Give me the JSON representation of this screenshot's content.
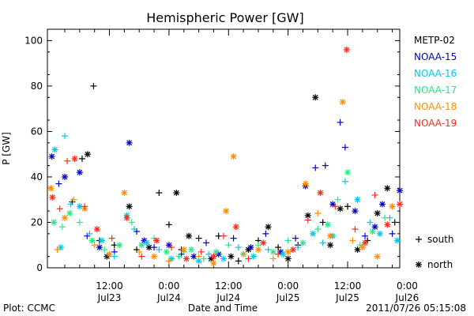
{
  "footer": {
    "left": "Plot: CCMC",
    "center": "Date and Time",
    "right": "2011/07/26 05:15:08"
  },
  "chart_data": {
    "type": "scatter",
    "title": "Hemispheric Power [GW]",
    "xlabel": "Date and Time",
    "ylabel": "P [GW]",
    "xlim": [
      -0.5,
      70.5
    ],
    "ylim": [
      0,
      105
    ],
    "y_ticks": [
      0,
      20,
      40,
      60,
      80,
      100
    ],
    "x_ticks": [
      {
        "x": 12,
        "top": "12:00",
        "bottom": "Jul23"
      },
      {
        "x": 24,
        "top": "0:00",
        "bottom": "Jul24"
      },
      {
        "x": 36,
        "top": "12:00",
        "bottom": "Jul24"
      },
      {
        "x": 48,
        "top": "0:00",
        "bottom": "Jul25"
      },
      {
        "x": 60,
        "top": "12:00",
        "bottom": "Jul25"
      },
      {
        "x": 72,
        "top": "0:00",
        "bottom": "Jul26"
      }
    ],
    "x_unit": "hours since 2011-07-23 00:00",
    "grid": false,
    "legend_position": "right",
    "marker_legend": [
      {
        "symbol": "+",
        "label": "south"
      },
      {
        "symbol": "*",
        "label": "north"
      }
    ],
    "series": [
      {
        "name": "METP-02",
        "color": "#000000",
        "points": [
          {
            "x": 6.5,
            "y": 48,
            "m": "+"
          },
          {
            "x": 7.6,
            "y": 50,
            "m": "*"
          },
          {
            "x": 8.8,
            "y": 80,
            "m": "+"
          },
          {
            "x": 10.0,
            "y": 12,
            "m": "+"
          },
          {
            "x": 11.5,
            "y": 5,
            "m": "*"
          },
          {
            "x": 13.0,
            "y": 10,
            "m": "+"
          },
          {
            "x": 16.0,
            "y": 27,
            "m": "*"
          },
          {
            "x": 17.5,
            "y": 8,
            "m": "+"
          },
          {
            "x": 20.0,
            "y": 9,
            "m": "*"
          },
          {
            "x": 22.0,
            "y": 33,
            "m": "+"
          },
          {
            "x": 24.0,
            "y": 19,
            "m": "+"
          },
          {
            "x": 25.5,
            "y": 33,
            "m": "*"
          },
          {
            "x": 26.5,
            "y": 8,
            "m": "+"
          },
          {
            "x": 28.0,
            "y": 14,
            "m": "*"
          },
          {
            "x": 30.0,
            "y": 13,
            "m": "+"
          },
          {
            "x": 32.5,
            "y": 4,
            "m": "*"
          },
          {
            "x": 34.0,
            "y": 14,
            "m": "+"
          },
          {
            "x": 36.5,
            "y": 5,
            "m": "*"
          },
          {
            "x": 38.0,
            "y": 3,
            "m": "+"
          },
          {
            "x": 40.0,
            "y": 8,
            "m": "*"
          },
          {
            "x": 42.0,
            "y": 12,
            "m": "+"
          },
          {
            "x": 44.0,
            "y": 18,
            "m": "*"
          },
          {
            "x": 46.0,
            "y": 9,
            "m": "+"
          },
          {
            "x": 48.0,
            "y": 4,
            "m": "*"
          },
          {
            "x": 50.0,
            "y": 10,
            "m": "+"
          },
          {
            "x": 52.0,
            "y": 23,
            "m": "*"
          },
          {
            "x": 53.5,
            "y": 75,
            "m": "*"
          },
          {
            "x": 55.0,
            "y": 20,
            "m": "+"
          },
          {
            "x": 56.5,
            "y": 10,
            "m": "*"
          },
          {
            "x": 58.5,
            "y": 26,
            "m": "*"
          },
          {
            "x": 60.0,
            "y": 27,
            "m": "+"
          },
          {
            "x": 62.0,
            "y": 8,
            "m": "*"
          },
          {
            "x": 64.0,
            "y": 12,
            "m": "+"
          },
          {
            "x": 66.0,
            "y": 24,
            "m": "*"
          },
          {
            "x": 68.0,
            "y": 35,
            "m": "*"
          },
          {
            "x": 69.5,
            "y": 20,
            "m": "+"
          }
        ]
      },
      {
        "name": "NOAA-15",
        "color": "#0000cd",
        "points": [
          {
            "x": 0.4,
            "y": 49,
            "m": "*"
          },
          {
            "x": 1.8,
            "y": 37,
            "m": "+"
          },
          {
            "x": 3.0,
            "y": 40,
            "m": "*"
          },
          {
            "x": 4.5,
            "y": 29,
            "m": "+"
          },
          {
            "x": 6.0,
            "y": 42,
            "m": "*"
          },
          {
            "x": 7.5,
            "y": 14,
            "m": "+"
          },
          {
            "x": 10.0,
            "y": 9,
            "m": "*"
          },
          {
            "x": 13.0,
            "y": 7,
            "m": "+"
          },
          {
            "x": 16.0,
            "y": 55,
            "m": "*"
          },
          {
            "x": 17.5,
            "y": 16,
            "m": "+"
          },
          {
            "x": 19.0,
            "y": 12,
            "m": "*"
          },
          {
            "x": 21.0,
            "y": 9,
            "m": "+"
          },
          {
            "x": 24.0,
            "y": 10,
            "m": "*"
          },
          {
            "x": 26.5,
            "y": 6,
            "m": "+"
          },
          {
            "x": 29.0,
            "y": 5,
            "m": "*"
          },
          {
            "x": 31.5,
            "y": 11,
            "m": "+"
          },
          {
            "x": 34.0,
            "y": 6,
            "m": "*"
          },
          {
            "x": 37.0,
            "y": 13,
            "m": "+"
          },
          {
            "x": 40.5,
            "y": 9,
            "m": "*"
          },
          {
            "x": 43.5,
            "y": 15,
            "m": "+"
          },
          {
            "x": 46.5,
            "y": 7,
            "m": "*"
          },
          {
            "x": 49.5,
            "y": 13,
            "m": "+"
          },
          {
            "x": 51.5,
            "y": 36,
            "m": "*"
          },
          {
            "x": 53.5,
            "y": 44,
            "m": "+"
          },
          {
            "x": 55.5,
            "y": 45,
            "m": "+"
          },
          {
            "x": 57.0,
            "y": 28,
            "m": "*"
          },
          {
            "x": 58.5,
            "y": 64,
            "m": "+"
          },
          {
            "x": 59.5,
            "y": 53,
            "m": "+"
          },
          {
            "x": 61.5,
            "y": 25,
            "m": "*"
          },
          {
            "x": 63.5,
            "y": 14,
            "m": "+"
          },
          {
            "x": 65.5,
            "y": 18,
            "m": "*"
          },
          {
            "x": 67.0,
            "y": 28,
            "m": "*"
          },
          {
            "x": 69.0,
            "y": 15,
            "m": "+"
          },
          {
            "x": 70.5,
            "y": 34,
            "m": "*"
          }
        ]
      },
      {
        "name": "NOAA-16",
        "color": "#00c8e6",
        "points": [
          {
            "x": 1.0,
            "y": 52,
            "m": "*"
          },
          {
            "x": 2.2,
            "y": 9,
            "m": "*"
          },
          {
            "x": 3.0,
            "y": 58,
            "m": "+"
          },
          {
            "x": 4.2,
            "y": 28,
            "m": "+"
          },
          {
            "x": 6.0,
            "y": 27,
            "m": "*"
          },
          {
            "x": 8.0,
            "y": 15,
            "m": "+"
          },
          {
            "x": 10.5,
            "y": 12,
            "m": "*"
          },
          {
            "x": 13.0,
            "y": 5,
            "m": "+"
          },
          {
            "x": 15.5,
            "y": 23,
            "m": "*"
          },
          {
            "x": 17.0,
            "y": 17,
            "m": "+"
          },
          {
            "x": 19.5,
            "y": 11,
            "m": "*"
          },
          {
            "x": 22.0,
            "y": 8,
            "m": "+"
          },
          {
            "x": 24.5,
            "y": 4,
            "m": "*"
          },
          {
            "x": 27.0,
            "y": 7,
            "m": "+"
          },
          {
            "x": 30.0,
            "y": 3,
            "m": "*"
          },
          {
            "x": 32.0,
            "y": 6,
            "m": "+"
          },
          {
            "x": 35.0,
            "y": 4,
            "m": "*"
          },
          {
            "x": 38.0,
            "y": 9,
            "m": "+"
          },
          {
            "x": 41.0,
            "y": 5,
            "m": "*"
          },
          {
            "x": 44.0,
            "y": 8,
            "m": "+"
          },
          {
            "x": 47.0,
            "y": 6,
            "m": "*"
          },
          {
            "x": 50.0,
            "y": 9,
            "m": "+"
          },
          {
            "x": 53.0,
            "y": 15,
            "m": "*"
          },
          {
            "x": 55.0,
            "y": 11,
            "m": "+"
          },
          {
            "x": 57.0,
            "y": 14,
            "m": "*"
          },
          {
            "x": 59.5,
            "y": 38,
            "m": "+"
          },
          {
            "x": 62.0,
            "y": 30,
            "m": "*"
          },
          {
            "x": 64.5,
            "y": 20,
            "m": "+"
          },
          {
            "x": 66.5,
            "y": 15,
            "m": "*"
          },
          {
            "x": 68.5,
            "y": 22,
            "m": "+"
          },
          {
            "x": 70.0,
            "y": 12,
            "m": "*"
          }
        ]
      },
      {
        "name": "NOAA-17",
        "color": "#28e686",
        "points": [
          {
            "x": 0.8,
            "y": 20,
            "m": "*"
          },
          {
            "x": 2.5,
            "y": 18,
            "m": "+"
          },
          {
            "x": 4.0,
            "y": 24,
            "m": "*"
          },
          {
            "x": 6.0,
            "y": 20,
            "m": "+"
          },
          {
            "x": 8.5,
            "y": 12,
            "m": "*"
          },
          {
            "x": 11.0,
            "y": 8,
            "m": "+"
          },
          {
            "x": 14.0,
            "y": 10,
            "m": "*"
          },
          {
            "x": 16.5,
            "y": 20,
            "m": "+"
          },
          {
            "x": 18.5,
            "y": 10,
            "m": "*"
          },
          {
            "x": 21.0,
            "y": 13,
            "m": "+"
          },
          {
            "x": 23.5,
            "y": 7,
            "m": "*"
          },
          {
            "x": 26.0,
            "y": 5,
            "m": "+"
          },
          {
            "x": 28.5,
            "y": 8,
            "m": "*"
          },
          {
            "x": 31.0,
            "y": 4,
            "m": "+"
          },
          {
            "x": 33.5,
            "y": 7,
            "m": "*"
          },
          {
            "x": 36.0,
            "y": 10,
            "m": "+"
          },
          {
            "x": 39.0,
            "y": 6,
            "m": "*"
          },
          {
            "x": 42.0,
            "y": 10,
            "m": "+"
          },
          {
            "x": 45.0,
            "y": 7,
            "m": "*"
          },
          {
            "x": 48.0,
            "y": 12,
            "m": "+"
          },
          {
            "x": 51.0,
            "y": 11,
            "m": "*"
          },
          {
            "x": 54.0,
            "y": 17,
            "m": "+"
          },
          {
            "x": 56.0,
            "y": 19,
            "m": "*"
          },
          {
            "x": 58.0,
            "y": 30,
            "m": "+"
          },
          {
            "x": 60.0,
            "y": 42,
            "m": "*"
          },
          {
            "x": 62.5,
            "y": 10,
            "m": "+"
          },
          {
            "x": 65.0,
            "y": 16,
            "m": "*"
          },
          {
            "x": 67.5,
            "y": 22,
            "m": "+"
          }
        ]
      },
      {
        "name": "NOAA-18",
        "color": "#ff8c00",
        "points": [
          {
            "x": 0.2,
            "y": 35,
            "m": "*"
          },
          {
            "x": 1.5,
            "y": 8,
            "m": "+"
          },
          {
            "x": 3.0,
            "y": 22,
            "m": "*"
          },
          {
            "x": 4.8,
            "y": 30,
            "m": "+"
          },
          {
            "x": 7.0,
            "y": 26,
            "m": "*"
          },
          {
            "x": 9.0,
            "y": 10,
            "m": "+"
          },
          {
            "x": 12.0,
            "y": 6,
            "m": "*"
          },
          {
            "x": 15.0,
            "y": 33,
            "m": "*"
          },
          {
            "x": 18.0,
            "y": 7,
            "m": "+"
          },
          {
            "x": 21.0,
            "y": 5,
            "m": "*"
          },
          {
            "x": 24.0,
            "y": 3,
            "m": "+"
          },
          {
            "x": 27.0,
            "y": 8,
            "m": "*"
          },
          {
            "x": 30.0,
            "y": 5,
            "m": "+"
          },
          {
            "x": 33.0,
            "y": 2,
            "m": "*"
          },
          {
            "x": 35.5,
            "y": 25,
            "m": "*"
          },
          {
            "x": 37.0,
            "y": 49,
            "m": "*"
          },
          {
            "x": 39.0,
            "y": 6,
            "m": "+"
          },
          {
            "x": 42.0,
            "y": 8,
            "m": "*"
          },
          {
            "x": 45.0,
            "y": 4,
            "m": "+"
          },
          {
            "x": 48.0,
            "y": 7,
            "m": "*"
          },
          {
            "x": 51.5,
            "y": 37,
            "m": "*"
          },
          {
            "x": 54.0,
            "y": 24,
            "m": "+"
          },
          {
            "x": 56.5,
            "y": 14,
            "m": "*"
          },
          {
            "x": 59.0,
            "y": 73,
            "m": "*"
          },
          {
            "x": 61.0,
            "y": 12,
            "m": "+"
          },
          {
            "x": 63.0,
            "y": 9,
            "m": "*"
          },
          {
            "x": 66.0,
            "y": 5,
            "m": "*"
          },
          {
            "x": 69.0,
            "y": 27,
            "m": "*"
          }
        ]
      },
      {
        "name": "NOAA-19",
        "color": "#ff2a1a",
        "points": [
          {
            "x": 0.5,
            "y": 31,
            "m": "*"
          },
          {
            "x": 2.0,
            "y": 26,
            "m": "+"
          },
          {
            "x": 3.5,
            "y": 47,
            "m": "+"
          },
          {
            "x": 5.0,
            "y": 48,
            "m": "*"
          },
          {
            "x": 7.0,
            "y": 27,
            "m": "+"
          },
          {
            "x": 9.5,
            "y": 17,
            "m": "*"
          },
          {
            "x": 12.5,
            "y": 13,
            "m": "+"
          },
          {
            "x": 15.5,
            "y": 22,
            "m": "*"
          },
          {
            "x": 18.5,
            "y": 5,
            "m": "+"
          },
          {
            "x": 21.5,
            "y": 12,
            "m": "*"
          },
          {
            "x": 24.5,
            "y": 9,
            "m": "+"
          },
          {
            "x": 27.5,
            "y": 4,
            "m": "*"
          },
          {
            "x": 30.5,
            "y": 7,
            "m": "+"
          },
          {
            "x": 33.0,
            "y": 5,
            "m": "*"
          },
          {
            "x": 35.0,
            "y": 14,
            "m": "+"
          },
          {
            "x": 37.5,
            "y": 18,
            "m": "*"
          },
          {
            "x": 40.0,
            "y": 4,
            "m": "+"
          },
          {
            "x": 43.0,
            "y": 11,
            "m": "*"
          },
          {
            "x": 46.0,
            "y": 6,
            "m": "+"
          },
          {
            "x": 49.0,
            "y": 8,
            "m": "*"
          },
          {
            "x": 52.0,
            "y": 21,
            "m": "+"
          },
          {
            "x": 54.5,
            "y": 33,
            "m": "*"
          },
          {
            "x": 57.5,
            "y": 27,
            "m": "+"
          },
          {
            "x": 59.8,
            "y": 96,
            "m": "*"
          },
          {
            "x": 61.5,
            "y": 17,
            "m": "+"
          },
          {
            "x": 63.5,
            "y": 11,
            "m": "*"
          },
          {
            "x": 65.5,
            "y": 32,
            "m": "+"
          },
          {
            "x": 68.0,
            "y": 19,
            "m": "*"
          },
          {
            "x": 70.5,
            "y": 28,
            "m": "*"
          }
        ]
      }
    ]
  }
}
